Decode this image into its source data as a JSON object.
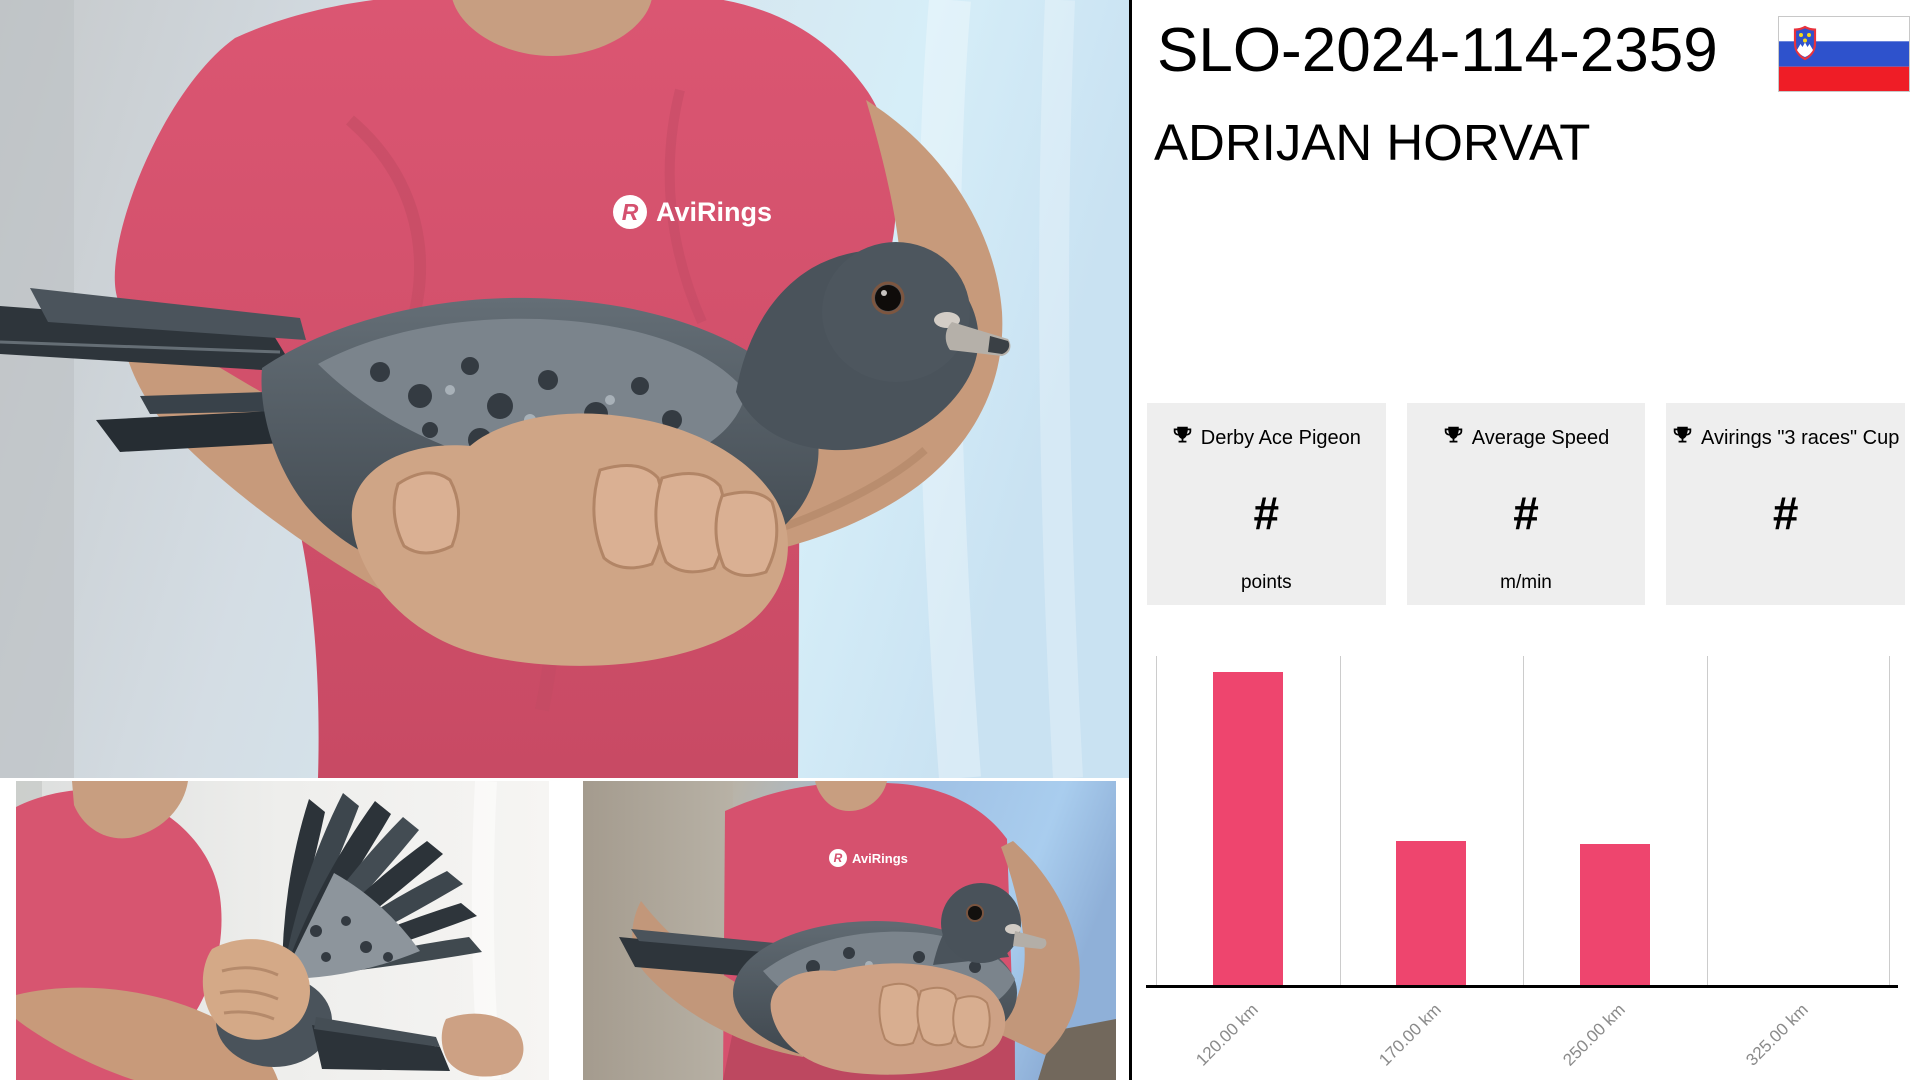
{
  "header": {
    "ring_number": "SLO-2024-114-2359",
    "owner_name": "ADRIJAN HORVAT",
    "flag_icon": "slovenia-flag"
  },
  "awards": {
    "cards": [
      {
        "icon": "trophy",
        "label": "Derby Ace Pigeon",
        "value": "#",
        "unit": "points"
      },
      {
        "icon": "trophy",
        "label": "Average Speed",
        "value": "#",
        "unit": "m/min"
      },
      {
        "icon": "trophy",
        "label": "Avirings \"3 races\" Cup",
        "value": "#",
        "unit": ""
      }
    ]
  },
  "chart_data": {
    "type": "bar",
    "title": "",
    "xlabel": "",
    "ylabel": "",
    "categories": [
      "120.00 km",
      "170.00 km",
      "250.00 km",
      "325.00 km"
    ],
    "values": [
      95,
      44,
      43,
      0
    ],
    "value_scale": "percent of plot height (no y-axis tick labels shown in chart)",
    "ylim": [
      0,
      100
    ],
    "bar_color": "#ee456e",
    "gridlines": "vertical category separators only",
    "gridline_color": "#cccccc",
    "axis_color": "#000000",
    "tick_label_color": "#8a8a8a",
    "x_tick_rotation": -45,
    "legend": "none"
  },
  "photos": {
    "shirt_logo": "AviRings",
    "logo_monogram": "R",
    "main_alt": "Fancier in pink AviRings T-shirt holding a dark racing pigeon with both hands",
    "wing_alt": "Pigeon's wing spread open showing dark flight feathers",
    "side_alt": "Fancier holding the pigeon horizontally, head facing right"
  },
  "colors": {
    "accent_pink": "#ee456e",
    "shirt_pink": "#d6536f",
    "card_background": "#eeeeee",
    "divider": "#000000"
  }
}
